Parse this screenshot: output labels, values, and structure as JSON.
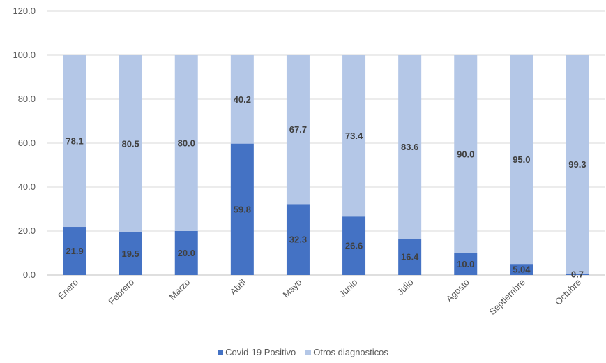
{
  "chart_data": {
    "type": "bar",
    "stacked": true,
    "categories": [
      "Enero",
      "Febrero",
      "Marzo",
      "Abril",
      "Mayo",
      "Junio",
      "Julio",
      "Agosto",
      "Septiembre",
      "Octubre"
    ],
    "series": [
      {
        "name": "Covid-19 Positivo",
        "color": "#4472C4",
        "values": [
          21.9,
          19.5,
          20.0,
          59.8,
          32.3,
          26.6,
          16.4,
          10.0,
          5.04,
          0.7
        ],
        "labels": [
          "21.9",
          "19.5",
          "20.0",
          "59.8",
          "32.3",
          "26.6",
          "16.4",
          "10.0",
          "5.04",
          "0.7"
        ]
      },
      {
        "name": "Otros diagnosticos",
        "color": "#B4C7E7",
        "values": [
          78.1,
          80.5,
          80.0,
          40.2,
          67.7,
          73.4,
          83.6,
          90.0,
          95.0,
          99.3
        ],
        "labels": [
          "78.1",
          "80.5",
          "80.0",
          "40.2",
          "67.7",
          "73.4",
          "83.6",
          "90.0",
          "95.0",
          "99.3"
        ]
      }
    ],
    "yticks": [
      "0.0",
      "20.0",
      "40.0",
      "60.0",
      "80.0",
      "100.0",
      "120.0"
    ],
    "ylim": [
      0,
      120
    ],
    "grid": true,
    "legend_position": "bottom"
  }
}
